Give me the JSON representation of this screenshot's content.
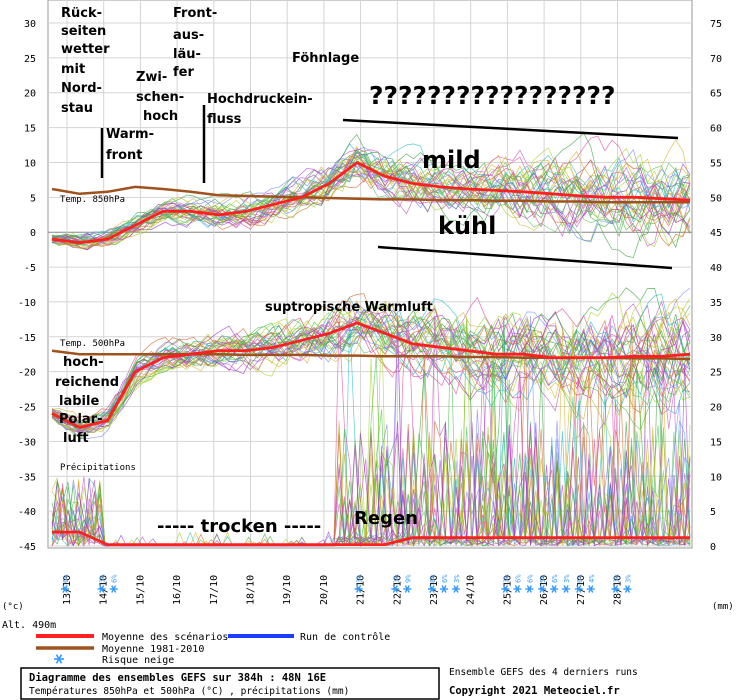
{
  "chart_data": {
    "type": "line",
    "y_left": {
      "ticks": [
        30,
        25,
        20,
        15,
        10,
        5,
        0,
        -5,
        -10,
        -15,
        -20,
        -25,
        -30,
        -35,
        -40,
        -45
      ],
      "unit_label": "(°c)",
      "range": [
        -45,
        30
      ]
    },
    "y_right": {
      "ticks": [
        75,
        70,
        65,
        60,
        55,
        50,
        45,
        40,
        35,
        30,
        25,
        20,
        15,
        10,
        5,
        0
      ],
      "unit_label": "(mm)",
      "range": [
        0,
        75
      ]
    },
    "x_ticks": [
      "13/10",
      "14/10",
      "15/10",
      "16/10",
      "17/10",
      "18/10",
      "19/10",
      "20/10",
      "21/10",
      "22/10",
      "23/10",
      "24/10",
      "25/10",
      "26/10",
      "27/10",
      "28/10"
    ],
    "altitude_label": "Alt. 490m",
    "section_labels": {
      "t850": "Temp. 850hPa",
      "t500": "Temp. 500hPa",
      "precip": "Précipitations"
    },
    "series_850": {
      "mean": [
        -1,
        -1.5,
        -1,
        1,
        3,
        3,
        2.5,
        3,
        4,
        5,
        7,
        10,
        8,
        7,
        6.5,
        6.2,
        6,
        5.8,
        5.5,
        5.2,
        5,
        5,
        4.8,
        4.6
      ],
      "climate": [
        6.2,
        5.5,
        5.8,
        6.5,
        6.2,
        5.8,
        5.3,
        5.2,
        5.1,
        5,
        4.9,
        4.8,
        4.7,
        4.7,
        4.6,
        4.6,
        4.5,
        4.5,
        4.4,
        4.4,
        4.3,
        4.3,
        4.3,
        4.3
      ]
    },
    "series_500": {
      "mean": [
        -26,
        -28,
        -27,
        -20,
        -18,
        -17.5,
        -17,
        -17,
        -16.5,
        -15.5,
        -14.5,
        -13,
        -14.5,
        -16,
        -16.5,
        -17,
        -17.5,
        -17.5,
        -18,
        -18,
        -18,
        -17.8,
        -17.8,
        -17.5
      ],
      "climate": [
        -17,
        -17.5,
        -17.5,
        -17.5,
        -17.5,
        -17.5,
        -17.5,
        -17.6,
        -17.6,
        -17.6,
        -17.7,
        -17.7,
        -17.8,
        -17.8,
        -17.8,
        -17.9,
        -17.9,
        -18,
        -18,
        -18,
        -18,
        -18.1,
        -18.1,
        -18.2
      ]
    },
    "snow_risk": [
      {
        "date": "13/10",
        "pct": "6%"
      },
      {
        "date": "14/10",
        "pct": "3%"
      },
      {
        "date": "14/10",
        "pct": "6%"
      },
      {
        "date": "21/10",
        "pct": "3%"
      },
      {
        "date": "22/10",
        "pct": "3%"
      },
      {
        "date": "22/10",
        "pct": "9%"
      },
      {
        "date": "23/10",
        "pct": "6%"
      },
      {
        "date": "23/10",
        "pct": "6%"
      },
      {
        "date": "23/10",
        "pct": "3%"
      },
      {
        "date": "25/10",
        "pct": "3%"
      },
      {
        "date": "25/10",
        "pct": "6%"
      },
      {
        "date": "25/10",
        "pct": "6%"
      },
      {
        "date": "26/10",
        "pct": "5%"
      },
      {
        "date": "26/10",
        "pct": "6%"
      },
      {
        "date": "26/10",
        "pct": "3%"
      },
      {
        "date": "27/10",
        "pct": "6%"
      },
      {
        "date": "27/10",
        "pct": "4%"
      },
      {
        "date": "28/10",
        "pct": "3%"
      },
      {
        "date": "28/10",
        "pct": "3%"
      }
    ]
  },
  "annotations": {
    "rueck": [
      "Rück-",
      "seiten",
      "wetter",
      "mit",
      "Nord-",
      "stau"
    ],
    "warm": [
      "Warm-",
      "front"
    ],
    "zwisch": [
      "Zwi-",
      "schen-",
      "hoch"
    ],
    "front": [
      "Front-",
      "aus-",
      "läu-",
      "fer"
    ],
    "hoch": [
      "Hochdruckein-",
      "fluss"
    ],
    "foehn": "Föhnlage",
    "questions": "?????????????????",
    "mild": "mild",
    "kuehl": "kühl",
    "subtrop": "suptropische Warmluft",
    "polar": [
      "hoch-",
      "reichend",
      "labile",
      "Polar-",
      "luft"
    ],
    "trocken": "----- trocken -----",
    "regen": "Regen"
  },
  "legend": {
    "mean": "Moyenne des scénarios",
    "climate": "Moyenne 1981-2010",
    "snow": "Risque neige",
    "control": "Run de contrôle"
  },
  "footer": {
    "title": "Diagramme des ensembles GEFS sur 384h : 48N 16E",
    "subtitle": "Températures 850hPa et 500hPa (°C) , précipitations (mm)",
    "runs": "Ensemble GEFS des 4 derniers runs",
    "copyright": "Copyright 2021 Meteociel.fr"
  },
  "colors": {
    "mean": "#ff2020",
    "climate": "#a0521d",
    "control": "#1e3cff",
    "snow": "#3399ff"
  }
}
